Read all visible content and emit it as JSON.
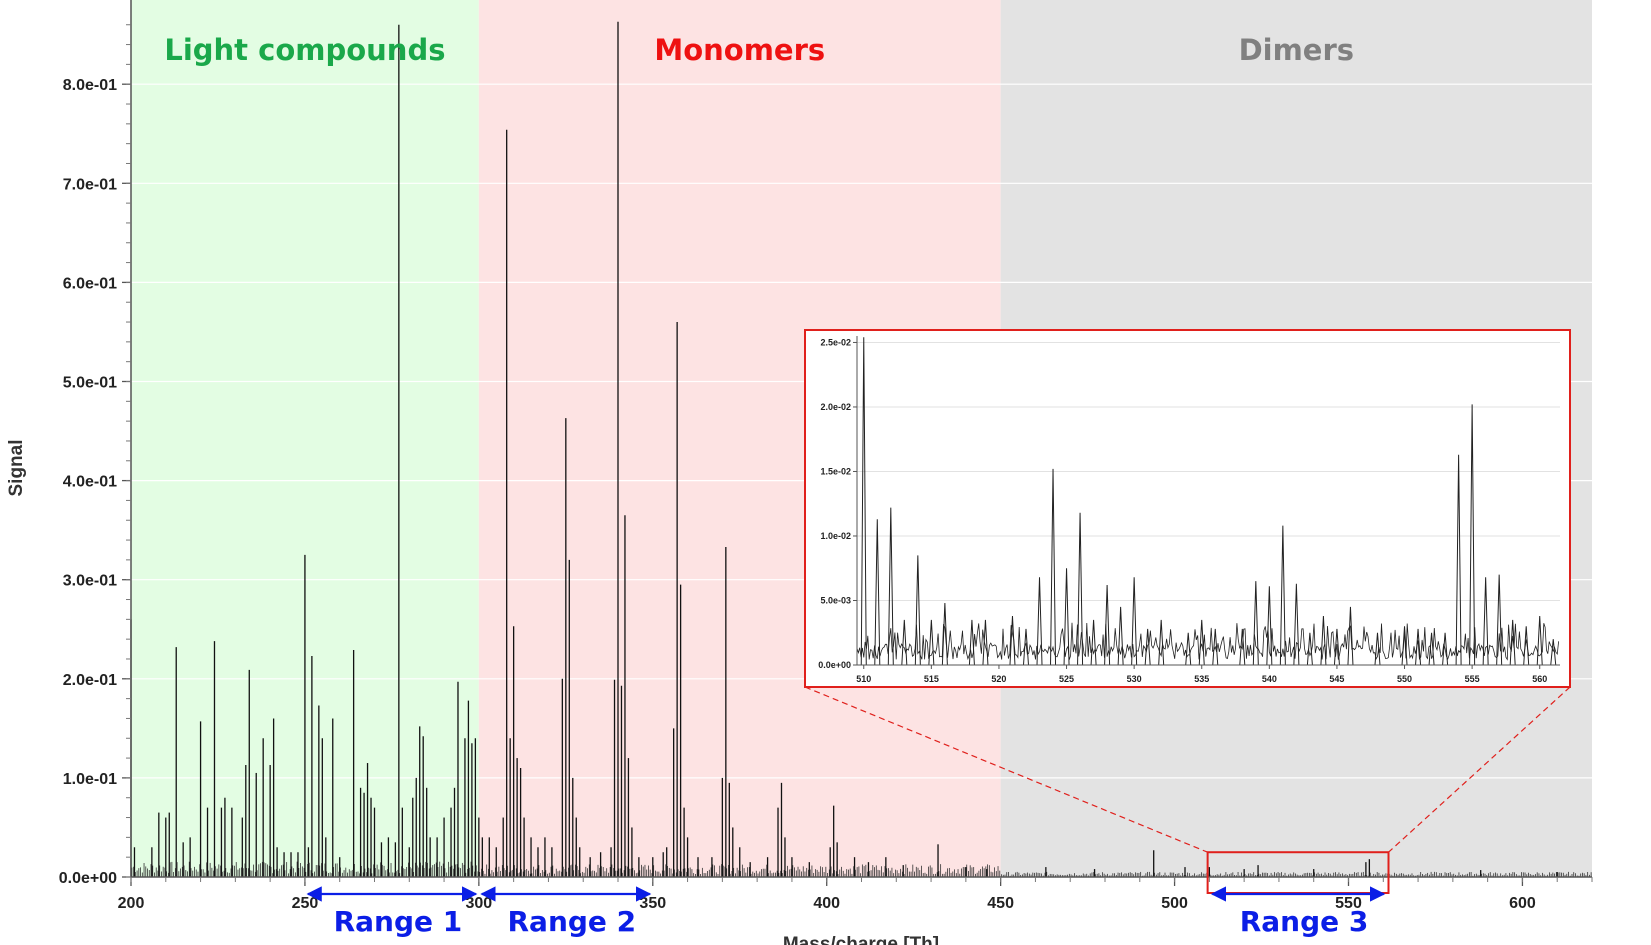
{
  "chart_data": [
    {
      "type": "bar",
      "role": "main-spectrum",
      "xlabel": "Mass/charge [Th]",
      "ylabel": "Signal",
      "xlim": [
        200,
        620
      ],
      "ylim": [
        0,
        0.86
      ],
      "x_ticks": [
        "200",
        "250",
        "300",
        "350",
        "400",
        "450",
        "500",
        "550",
        "600"
      ],
      "y_ticks": [
        "0.0e+00",
        "1.0e-01",
        "2.0e-01",
        "3.0e-01",
        "4.0e-01",
        "5.0e-01",
        "6.0e-01",
        "7.0e-01",
        "8.0e-01"
      ],
      "y_tick_values": [
        0,
        0.1,
        0.2,
        0.3,
        0.4,
        0.5,
        0.6,
        0.7,
        0.8
      ],
      "grid": true,
      "regions": [
        {
          "label": "Light compounds",
          "x_range": [
            200,
            300
          ],
          "fill": "#e3fde3",
          "text_color": "#1aa84a"
        },
        {
          "label": "Monomers",
          "x_range": [
            300,
            450
          ],
          "fill": "#fde3e3",
          "text_color": "#ee1111"
        },
        {
          "label": "Dimers",
          "x_range": [
            450,
            620
          ],
          "fill": "#e3e3e3",
          "text_color": "#808080"
        }
      ],
      "ranges": [
        {
          "label": "Range 1",
          "x_range": [
            250,
            300
          ]
        },
        {
          "label": "Range 2",
          "x_range": [
            300,
            350
          ]
        },
        {
          "label": "Range 3",
          "x_range": [
            510,
            561
          ]
        }
      ],
      "peaks": [
        [
          200.0,
          0.26
        ],
        [
          201.0,
          0.03
        ],
        [
          206.0,
          0.03
        ],
        [
          208.0,
          0.065
        ],
        [
          210.0,
          0.06
        ],
        [
          211.0,
          0.065
        ],
        [
          213.0,
          0.232
        ],
        [
          215.0,
          0.035
        ],
        [
          217.0,
          0.04
        ],
        [
          220.0,
          0.157
        ],
        [
          222.0,
          0.07
        ],
        [
          224.0,
          0.238
        ],
        [
          226.0,
          0.07
        ],
        [
          227.0,
          0.08
        ],
        [
          229.0,
          0.07
        ],
        [
          232.0,
          0.06
        ],
        [
          233.0,
          0.113
        ],
        [
          234.0,
          0.209
        ],
        [
          236.0,
          0.105
        ],
        [
          238.0,
          0.14
        ],
        [
          240.0,
          0.113
        ],
        [
          241.0,
          0.16
        ],
        [
          242.0,
          0.03
        ],
        [
          244.0,
          0.025
        ],
        [
          246.0,
          0.025
        ],
        [
          248.0,
          0.025
        ],
        [
          250.0,
          0.325
        ],
        [
          251.0,
          0.03
        ],
        [
          252.0,
          0.223
        ],
        [
          254.0,
          0.173
        ],
        [
          255.0,
          0.14
        ],
        [
          256.0,
          0.04
        ],
        [
          258.0,
          0.16
        ],
        [
          260.0,
          0.02
        ],
        [
          264.0,
          0.229
        ],
        [
          266.0,
          0.09
        ],
        [
          267.0,
          0.085
        ],
        [
          268.0,
          0.115
        ],
        [
          269.0,
          0.08
        ],
        [
          270.0,
          0.07
        ],
        [
          272.0,
          0.035
        ],
        [
          274.0,
          0.04
        ],
        [
          276.0,
          0.035
        ],
        [
          277.0,
          0.86
        ],
        [
          278.0,
          0.07
        ],
        [
          280.0,
          0.03
        ],
        [
          281.0,
          0.08
        ],
        [
          282.0,
          0.1
        ],
        [
          283.0,
          0.152
        ],
        [
          284.0,
          0.142
        ],
        [
          285.0,
          0.09
        ],
        [
          286.0,
          0.04
        ],
        [
          288.0,
          0.04
        ],
        [
          290.0,
          0.06
        ],
        [
          292.0,
          0.07
        ],
        [
          293.0,
          0.09
        ],
        [
          294.0,
          0.197
        ],
        [
          296.0,
          0.14
        ],
        [
          297.0,
          0.178
        ],
        [
          298.0,
          0.135
        ],
        [
          299.0,
          0.14
        ],
        [
          300.0,
          0.06
        ],
        [
          301.0,
          0.04
        ],
        [
          303.0,
          0.04
        ],
        [
          305.0,
          0.03
        ],
        [
          307.0,
          0.06
        ],
        [
          308.0,
          0.754
        ],
        [
          309.0,
          0.14
        ],
        [
          310.0,
          0.253
        ],
        [
          311.0,
          0.12
        ],
        [
          312.0,
          0.11
        ],
        [
          313.0,
          0.06
        ],
        [
          315.0,
          0.04
        ],
        [
          317.0,
          0.03
        ],
        [
          319.0,
          0.04
        ],
        [
          321.0,
          0.03
        ],
        [
          324.0,
          0.2
        ],
        [
          325.0,
          0.463
        ],
        [
          326.0,
          0.32
        ],
        [
          327.0,
          0.1
        ],
        [
          328.0,
          0.06
        ],
        [
          329.0,
          0.03
        ],
        [
          332.0,
          0.02
        ],
        [
          335.0,
          0.025
        ],
        [
          338.0,
          0.03
        ],
        [
          339.0,
          0.199
        ],
        [
          340.0,
          0.863
        ],
        [
          341.0,
          0.193
        ],
        [
          342.0,
          0.365
        ],
        [
          343.0,
          0.12
        ],
        [
          344.0,
          0.05
        ],
        [
          346.0,
          0.02
        ],
        [
          350.0,
          0.02
        ],
        [
          353.0,
          0.025
        ],
        [
          354.0,
          0.03
        ],
        [
          356.0,
          0.15
        ],
        [
          357.0,
          0.56
        ],
        [
          358.0,
          0.295
        ],
        [
          359.0,
          0.07
        ],
        [
          360.0,
          0.04
        ],
        [
          363.0,
          0.02
        ],
        [
          367.0,
          0.02
        ],
        [
          370.0,
          0.1
        ],
        [
          371.0,
          0.333
        ],
        [
          372.0,
          0.095
        ],
        [
          373.0,
          0.05
        ],
        [
          375.0,
          0.03
        ],
        [
          378.0,
          0.015
        ],
        [
          383.0,
          0.02
        ],
        [
          386.0,
          0.07
        ],
        [
          387.0,
          0.095
        ],
        [
          388.0,
          0.04
        ],
        [
          390.0,
          0.02
        ],
        [
          395.0,
          0.015
        ],
        [
          401.0,
          0.03
        ],
        [
          402.0,
          0.072
        ],
        [
          403.0,
          0.035
        ],
        [
          408.0,
          0.02
        ],
        [
          412.0,
          0.015
        ],
        [
          417.0,
          0.02
        ],
        [
          422.0,
          0.012
        ],
        [
          432.0,
          0.033
        ],
        [
          440.0,
          0.01
        ],
        [
          446.0,
          0.008
        ],
        [
          463.0,
          0.01
        ],
        [
          477.0,
          0.008
        ],
        [
          494.0,
          0.027
        ],
        [
          503.0,
          0.01
        ],
        [
          510.0,
          0.01
        ],
        [
          520.0,
          0.008
        ],
        [
          524.0,
          0.012
        ],
        [
          540.0,
          0.008
        ],
        [
          555.0,
          0.015
        ],
        [
          556.0,
          0.018
        ],
        [
          588.0,
          0.007
        ],
        [
          610.0,
          0.005
        ]
      ]
    },
    {
      "type": "bar",
      "role": "inset-zoom",
      "xlim": [
        509.5,
        561.5
      ],
      "ylim": [
        0,
        0.0255
      ],
      "x_ticks": [
        "510",
        "515",
        "520",
        "525",
        "530",
        "535",
        "540",
        "545",
        "550",
        "555",
        "560"
      ],
      "y_ticks": [
        "0.0e+00",
        "5.0e-03",
        "1.0e-02",
        "1.5e-02",
        "2.0e-02",
        "2.5e-02"
      ],
      "y_tick_values": [
        0,
        0.005,
        0.01,
        0.015,
        0.02,
        0.025
      ],
      "grid": true,
      "peaks": [
        [
          510.0,
          0.0254
        ],
        [
          511.0,
          0.0113
        ],
        [
          512.0,
          0.0122
        ],
        [
          513.0,
          0.0035
        ],
        [
          514.0,
          0.0085
        ],
        [
          515.0,
          0.0035
        ],
        [
          516.0,
          0.0048
        ],
        [
          518.0,
          0.0035
        ],
        [
          519.0,
          0.0035
        ],
        [
          521.0,
          0.0038
        ],
        [
          522.0,
          0.0028
        ],
        [
          523.0,
          0.0068
        ],
        [
          524.0,
          0.0152
        ],
        [
          525.0,
          0.0075
        ],
        [
          526.0,
          0.0118
        ],
        [
          527.0,
          0.0035
        ],
        [
          528.0,
          0.0062
        ],
        [
          529.0,
          0.0045
        ],
        [
          530.0,
          0.0068
        ],
        [
          531.0,
          0.0028
        ],
        [
          532.0,
          0.0035
        ],
        [
          534.0,
          0.0025
        ],
        [
          535.0,
          0.0035
        ],
        [
          536.0,
          0.0028
        ],
        [
          538.0,
          0.0028
        ],
        [
          539.0,
          0.0065
        ],
        [
          540.0,
          0.0061
        ],
        [
          541.0,
          0.0108
        ],
        [
          542.0,
          0.0063
        ],
        [
          543.0,
          0.0025
        ],
        [
          544.0,
          0.0038
        ],
        [
          545.0,
          0.0028
        ],
        [
          546.0,
          0.0045
        ],
        [
          548.0,
          0.0025
        ],
        [
          550.0,
          0.003
        ],
        [
          551.0,
          0.0028
        ],
        [
          552.0,
          0.0025
        ],
        [
          553.0,
          0.0025
        ],
        [
          554.0,
          0.0163
        ],
        [
          555.0,
          0.0202
        ],
        [
          556.0,
          0.0068
        ],
        [
          557.0,
          0.007
        ],
        [
          558.0,
          0.0035
        ],
        [
          559.0,
          0.003
        ],
        [
          560.0,
          0.0038
        ],
        [
          561.0,
          0.002
        ]
      ]
    }
  ],
  "colors": {
    "range_arrow": "#0b1ee6",
    "zoom_box": "#e0201c",
    "trace": "#111111",
    "gridline": "#ffffff"
  }
}
